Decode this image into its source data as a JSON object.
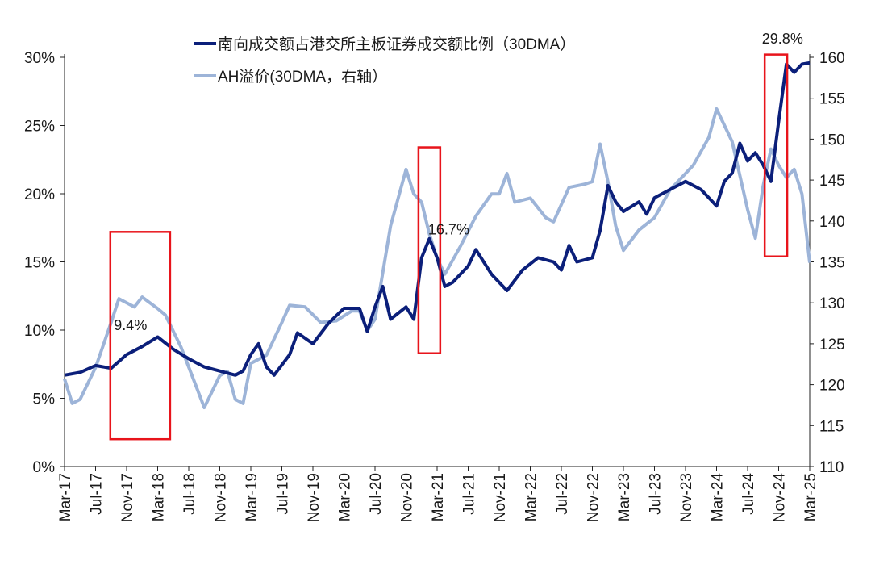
{
  "chart_data": {
    "type": "line",
    "title": "",
    "x_ticks": [
      "Mar-17",
      "Jul-17",
      "Nov-17",
      "Mar-18",
      "Jul-18",
      "Nov-18",
      "Mar-19",
      "Jul-19",
      "Nov-19",
      "Mar-20",
      "Jul-20",
      "Nov-20",
      "Mar-21",
      "Jul-21",
      "Nov-21",
      "Mar-22",
      "Jul-22",
      "Nov-22",
      "Mar-23",
      "Jul-23",
      "Nov-23",
      "Mar-24",
      "Jul-24",
      "Nov-24",
      "Mar-25"
    ],
    "x_unit": "months since Mar-17",
    "x_range": [
      0,
      96
    ],
    "y_left": {
      "range": [
        0,
        30
      ],
      "ticks": [
        0,
        5,
        10,
        15,
        20,
        25,
        30
      ],
      "tick_labels": [
        "0%",
        "5%",
        "10%",
        "15%",
        "20%",
        "25%",
        "30%"
      ]
    },
    "y_right": {
      "range": [
        110,
        160
      ],
      "ticks": [
        110,
        115,
        120,
        125,
        130,
        135,
        140,
        145,
        150,
        155,
        160
      ],
      "tick_labels": [
        "110",
        "115",
        "120",
        "125",
        "130",
        "135",
        "140",
        "145",
        "150",
        "155",
        "160"
      ]
    },
    "legend_position": "top-center",
    "series": [
      {
        "name": "南向成交额占港交所主板证券成交额比例（30DMA）",
        "axis": "left",
        "color": "#0b1f7a",
        "points": [
          [
            0,
            6.7
          ],
          [
            2,
            6.9
          ],
          [
            4,
            7.4
          ],
          [
            6,
            7.2
          ],
          [
            8,
            8.2
          ],
          [
            10,
            8.8
          ],
          [
            12,
            9.5
          ],
          [
            14,
            8.6
          ],
          [
            16,
            7.9
          ],
          [
            18,
            7.3
          ],
          [
            20,
            7.0
          ],
          [
            22,
            6.7
          ],
          [
            23,
            7.0
          ],
          [
            24,
            8.2
          ],
          [
            25,
            9.0
          ],
          [
            26,
            7.3
          ],
          [
            27,
            6.7
          ],
          [
            29,
            8.2
          ],
          [
            30,
            9.8
          ],
          [
            32,
            9.0
          ],
          [
            34,
            10.5
          ],
          [
            36,
            11.6
          ],
          [
            38,
            11.6
          ],
          [
            39,
            9.9
          ],
          [
            40,
            11.7
          ],
          [
            41,
            13.2
          ],
          [
            42,
            10.8
          ],
          [
            44,
            11.7
          ],
          [
            45,
            10.8
          ],
          [
            46,
            15.3
          ],
          [
            47,
            16.7
          ],
          [
            48,
            15.3
          ],
          [
            49,
            13.2
          ],
          [
            50,
            13.5
          ],
          [
            52,
            14.7
          ],
          [
            53,
            15.9
          ],
          [
            55,
            14.1
          ],
          [
            57,
            12.9
          ],
          [
            59,
            14.4
          ],
          [
            61,
            15.3
          ],
          [
            63,
            15.0
          ],
          [
            64,
            14.4
          ],
          [
            65,
            16.2
          ],
          [
            66,
            15.0
          ],
          [
            68,
            15.3
          ],
          [
            69,
            17.3
          ],
          [
            70,
            20.6
          ],
          [
            71,
            19.4
          ],
          [
            72,
            18.7
          ],
          [
            74,
            19.4
          ],
          [
            75,
            18.5
          ],
          [
            76,
            19.7
          ],
          [
            78,
            20.3
          ],
          [
            80,
            20.9
          ],
          [
            82,
            20.3
          ],
          [
            84,
            19.1
          ],
          [
            85,
            20.9
          ],
          [
            86,
            21.5
          ],
          [
            87,
            23.7
          ],
          [
            88,
            22.4
          ],
          [
            89,
            23.0
          ],
          [
            90,
            22.1
          ],
          [
            91,
            20.9
          ],
          [
            92,
            25.3
          ],
          [
            93,
            29.5
          ],
          [
            94,
            28.9
          ],
          [
            95,
            29.5
          ],
          [
            96,
            29.6
          ]
        ]
      },
      {
        "name": "AH溢价(30DMA，右轴）",
        "axis": "right",
        "color": "#9db4d8",
        "points": [
          [
            0,
            120.7
          ],
          [
            1,
            117.7
          ],
          [
            2,
            118.2
          ],
          [
            4,
            122.1
          ],
          [
            6,
            127.6
          ],
          [
            7,
            130.5
          ],
          [
            9,
            129.5
          ],
          [
            10,
            130.7
          ],
          [
            12,
            129.3
          ],
          [
            13,
            128.5
          ],
          [
            15,
            124.6
          ],
          [
            17,
            119.7
          ],
          [
            18,
            117.2
          ],
          [
            20,
            121.1
          ],
          [
            21,
            121.6
          ],
          [
            22,
            118.2
          ],
          [
            23,
            117.7
          ],
          [
            24,
            122.6
          ],
          [
            26,
            123.6
          ],
          [
            28,
            127.6
          ],
          [
            29,
            129.7
          ],
          [
            31,
            129.5
          ],
          [
            33,
            127.6
          ],
          [
            35,
            127.8
          ],
          [
            37,
            129.0
          ],
          [
            38,
            129.0
          ],
          [
            39,
            126.6
          ],
          [
            40,
            128.0
          ],
          [
            42,
            139.4
          ],
          [
            44,
            146.3
          ],
          [
            45,
            143.3
          ],
          [
            46,
            142.3
          ],
          [
            47,
            138.4
          ],
          [
            48,
            135.4
          ],
          [
            49,
            133.5
          ],
          [
            51,
            136.9
          ],
          [
            53,
            140.6
          ],
          [
            55,
            143.3
          ],
          [
            56,
            143.3
          ],
          [
            57,
            145.8
          ],
          [
            58,
            142.3
          ],
          [
            60,
            142.8
          ],
          [
            62,
            140.4
          ],
          [
            63,
            139.9
          ],
          [
            65,
            144.1
          ],
          [
            67,
            144.5
          ],
          [
            68,
            144.8
          ],
          [
            69,
            149.4
          ],
          [
            70,
            144.8
          ],
          [
            71,
            139.4
          ],
          [
            72,
            136.4
          ],
          [
            74,
            138.9
          ],
          [
            76,
            140.4
          ],
          [
            78,
            143.8
          ],
          [
            80,
            145.8
          ],
          [
            81,
            146.8
          ],
          [
            83,
            150.2
          ],
          [
            84,
            153.7
          ],
          [
            86,
            149.7
          ],
          [
            88,
            141.4
          ],
          [
            89,
            137.9
          ],
          [
            90,
            144.3
          ],
          [
            91,
            148.8
          ],
          [
            92,
            146.8
          ],
          [
            93,
            145.3
          ],
          [
            94,
            146.3
          ],
          [
            95,
            143.3
          ],
          [
            96,
            134.9
          ]
        ]
      }
    ],
    "annotations": [
      {
        "text": "9.4%",
        "x": 8.5,
        "y": 10.0,
        "box": {
          "x0": 5.9,
          "x1": 13.6,
          "y0": 2.0,
          "y1": 17.2
        }
      },
      {
        "text": "16.7%",
        "x": 49.5,
        "y": 17.0,
        "box": {
          "x0": 45.6,
          "x1": 48.4,
          "y0": 8.3,
          "y1": 23.4
        }
      },
      {
        "text": "29.8%",
        "x": 92.5,
        "y": 31.0,
        "box": {
          "x0": 90.2,
          "x1": 93.1,
          "y0": 15.4,
          "y1": 30.2
        }
      }
    ],
    "annotation_box_color": "#e8141b"
  }
}
